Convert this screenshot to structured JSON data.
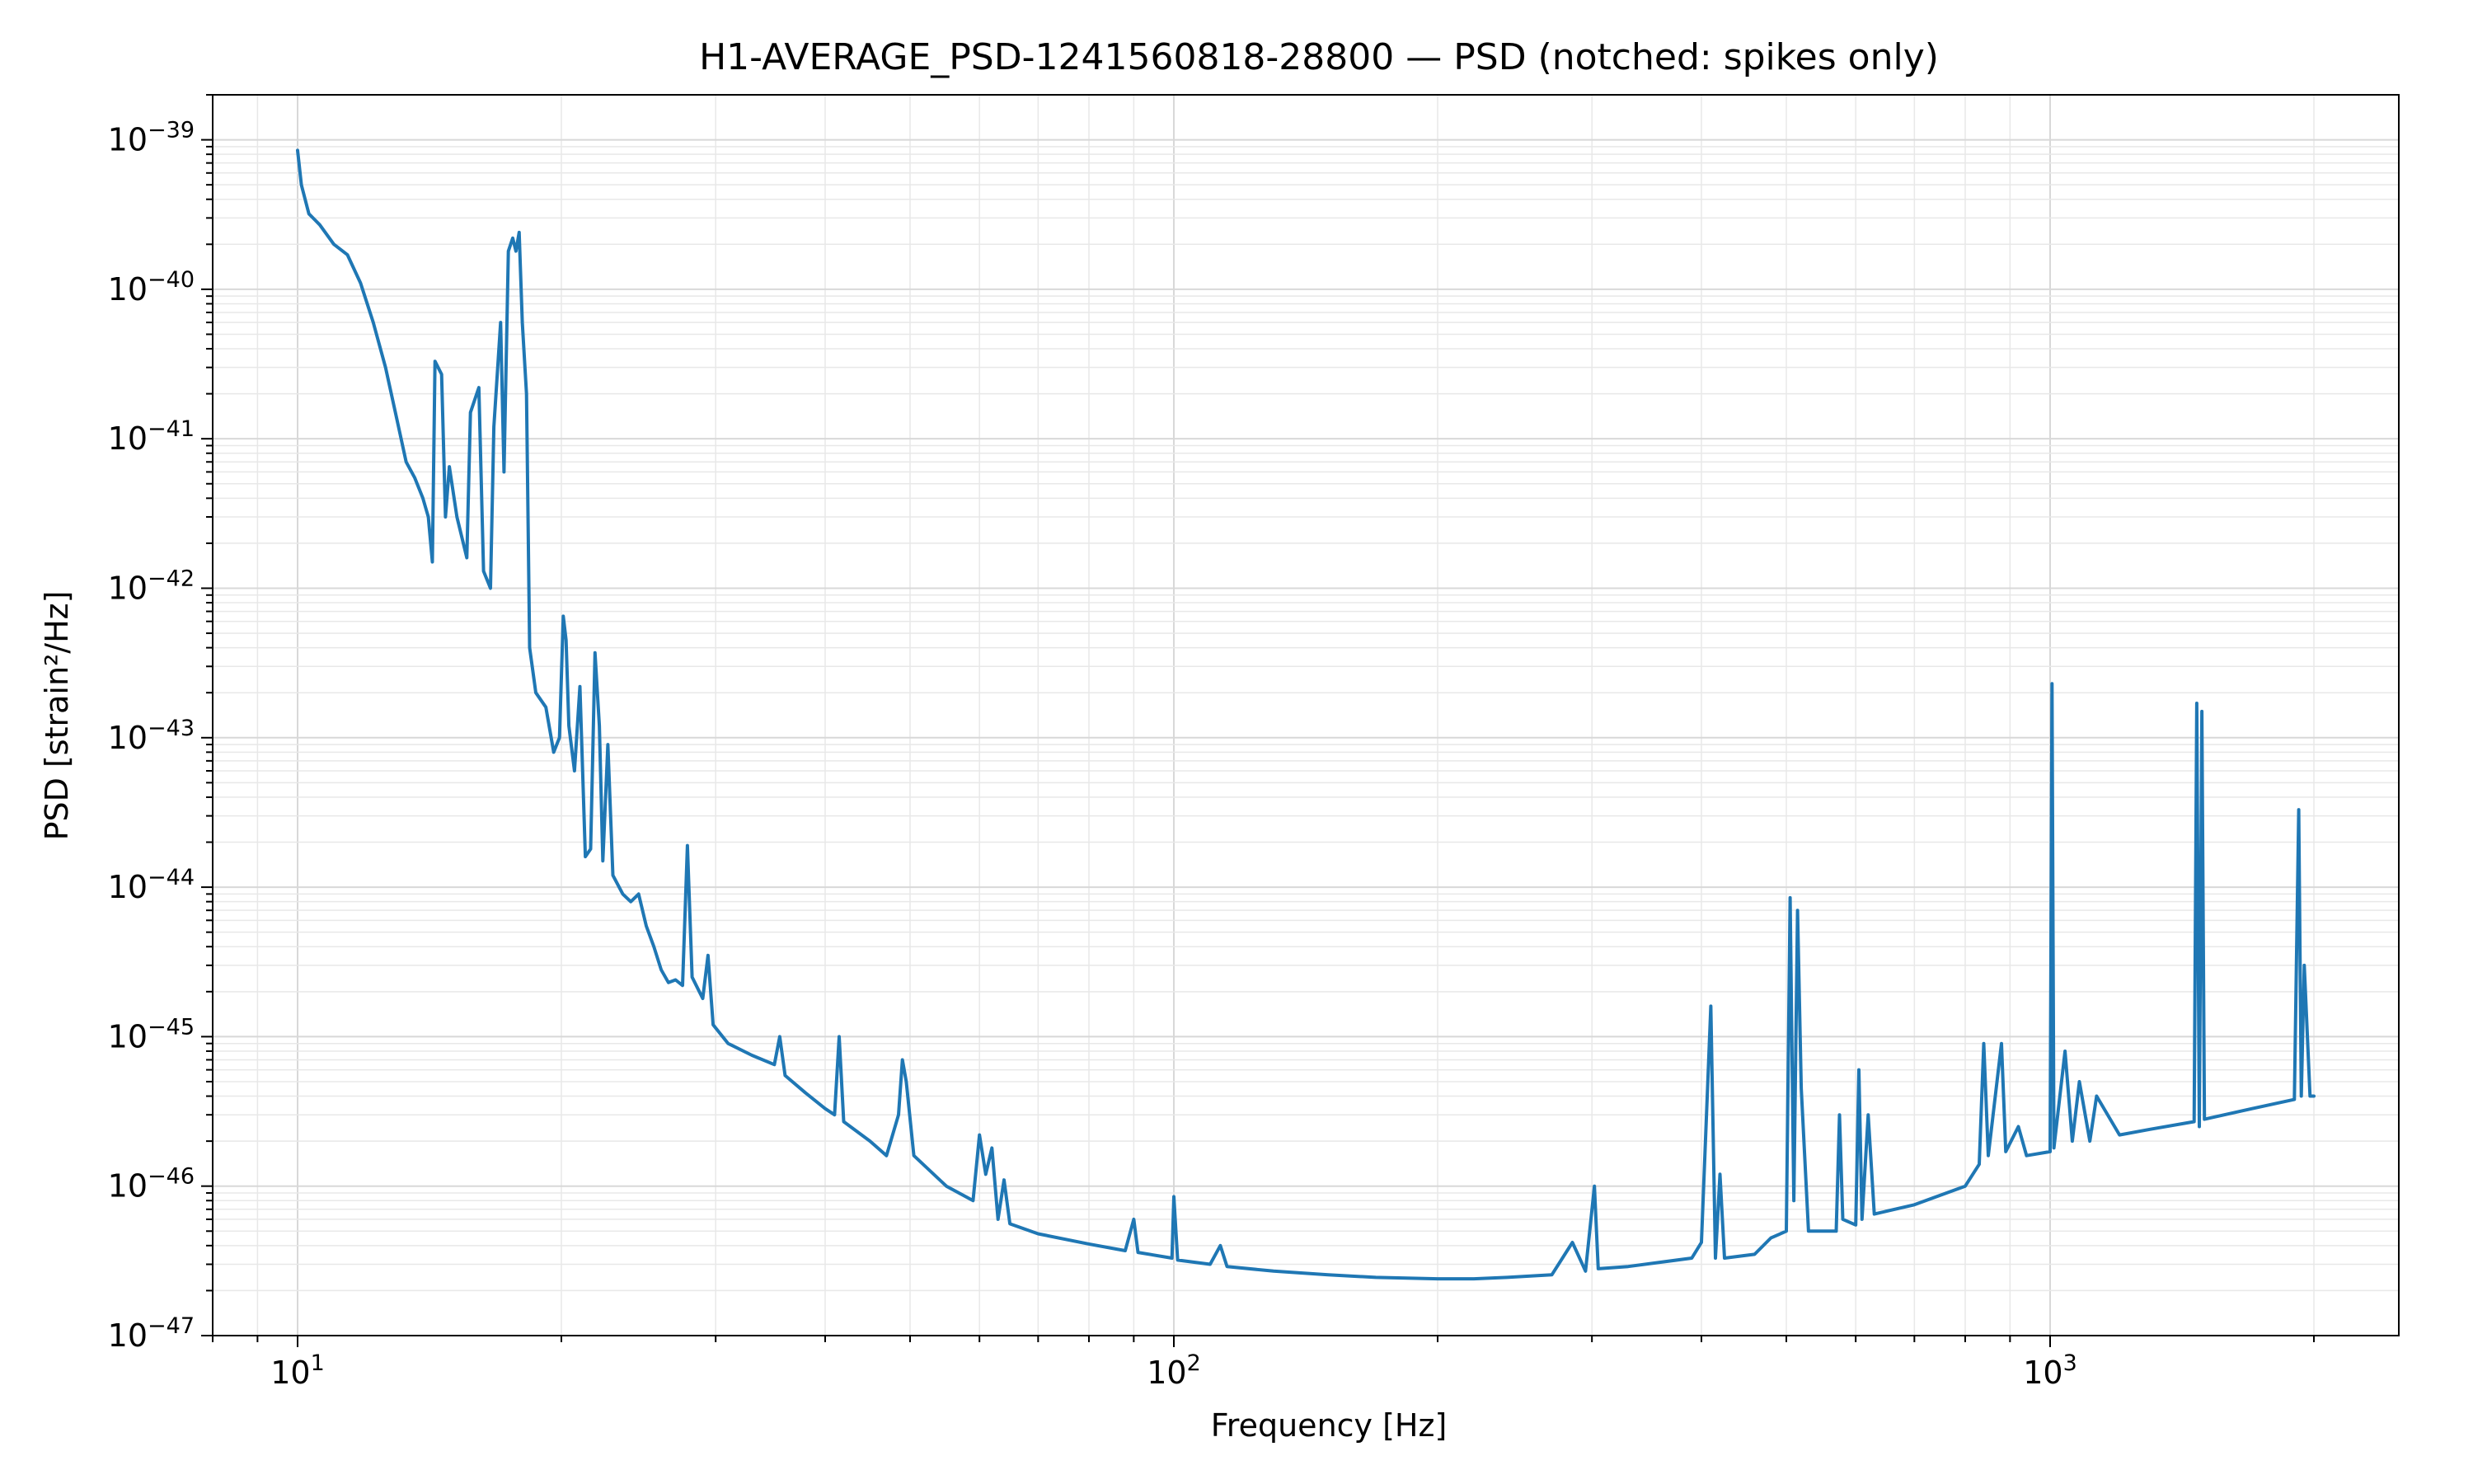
{
  "chart_data": {
    "type": "line",
    "title": "H1-AVERAGE_PSD-1241560818-28800 — PSD (notched: spikes only)",
    "xlabel": "Frequency [Hz]",
    "ylabel": "PSD [strain²/Hz]",
    "x_scale": "log",
    "y_scale": "log",
    "xlim": [
      8,
      2500
    ],
    "ylim": [
      1e-47,
      2e-39
    ],
    "grid": true,
    "legend": "none",
    "x_ticks": [
      {
        "value": 10,
        "base": "10",
        "exp": "1"
      },
      {
        "value": 100,
        "base": "10",
        "exp": "2"
      },
      {
        "value": 1000,
        "base": "10",
        "exp": "3"
      }
    ],
    "y_ticks": [
      {
        "value": 1e-39,
        "base": "10",
        "exp": "−39"
      },
      {
        "value": 1e-40,
        "base": "10",
        "exp": "−40"
      },
      {
        "value": 1e-41,
        "base": "10",
        "exp": "−41"
      },
      {
        "value": 1e-42,
        "base": "10",
        "exp": "−42"
      },
      {
        "value": 1e-43,
        "base": "10",
        "exp": "−43"
      },
      {
        "value": 1e-44,
        "base": "10",
        "exp": "−44"
      },
      {
        "value": 1e-45,
        "base": "10",
        "exp": "−45"
      },
      {
        "value": 1e-46,
        "base": "10",
        "exp": "−46"
      },
      {
        "value": 1e-47,
        "base": "10",
        "exp": "−47"
      }
    ],
    "series": [
      {
        "color": "#1f77b4",
        "points": [
          [
            10,
            8.5e-40
          ],
          [
            10.1,
            5e-40
          ],
          [
            10.3,
            3.2e-40
          ],
          [
            10.6,
            2.7e-40
          ],
          [
            11,
            2e-40
          ],
          [
            11.4,
            1.7e-40
          ],
          [
            11.8,
            1.1e-40
          ],
          [
            12.2,
            6e-41
          ],
          [
            12.6,
            3e-41
          ],
          [
            13,
            1.3e-41
          ],
          [
            13.3,
            7e-42
          ],
          [
            13.6,
            5.5e-42
          ],
          [
            13.9,
            4e-42
          ],
          [
            14.1,
            3e-42
          ],
          [
            14.25,
            1.5e-42
          ],
          [
            14.35,
            3.3e-41
          ],
          [
            14.6,
            2.7e-41
          ],
          [
            14.75,
            3e-42
          ],
          [
            14.9,
            6.5e-42
          ],
          [
            15.2,
            3e-42
          ],
          [
            15.6,
            1.6e-42
          ],
          [
            15.75,
            1.5e-41
          ],
          [
            16.1,
            2.2e-41
          ],
          [
            16.3,
            1.3e-42
          ],
          [
            16.6,
            1e-42
          ],
          [
            16.75,
            1.2e-41
          ],
          [
            17.05,
            6e-41
          ],
          [
            17.2,
            6e-42
          ],
          [
            17.4,
            1.8e-40
          ],
          [
            17.6,
            2.2e-40
          ],
          [
            17.75,
            1.8e-40
          ],
          [
            17.9,
            2.4e-40
          ],
          [
            18.05,
            6e-41
          ],
          [
            18.25,
            2e-41
          ],
          [
            18.4,
            4e-43
          ],
          [
            18.7,
            2e-43
          ],
          [
            19.2,
            1.6e-43
          ],
          [
            19.6,
            8e-44
          ],
          [
            19.9,
            1e-43
          ],
          [
            20.1,
            6.5e-43
          ],
          [
            20.25,
            4.5e-43
          ],
          [
            20.4,
            1.2e-43
          ],
          [
            20.7,
            6e-44
          ],
          [
            21,
            2.2e-43
          ],
          [
            21.3,
            1.6e-44
          ],
          [
            21.6,
            1.8e-44
          ],
          [
            21.85,
            3.7e-43
          ],
          [
            22.1,
            1.2e-43
          ],
          [
            22.3,
            1.5e-44
          ],
          [
            22.6,
            9e-44
          ],
          [
            22.9,
            1.2e-44
          ],
          [
            23.5,
            9e-45
          ],
          [
            24,
            8e-45
          ],
          [
            24.5,
            9e-45
          ],
          [
            25,
            5.5e-45
          ],
          [
            25.5,
            4e-45
          ],
          [
            26,
            2.8e-45
          ],
          [
            26.5,
            2.3e-45
          ],
          [
            27,
            2.4e-45
          ],
          [
            27.5,
            2.2e-45
          ],
          [
            27.85,
            1.9e-44
          ],
          [
            28.2,
            2.5e-45
          ],
          [
            29,
            1.8e-45
          ],
          [
            29.4,
            3.5e-45
          ],
          [
            29.8,
            1.2e-45
          ],
          [
            31,
            9e-46
          ],
          [
            33,
            7.5e-46
          ],
          [
            35,
            6.5e-46
          ],
          [
            35.5,
            1e-45
          ],
          [
            36,
            5.5e-46
          ],
          [
            38,
            4.2e-46
          ],
          [
            40,
            3.3e-46
          ],
          [
            41,
            3e-46
          ],
          [
            41.5,
            1e-45
          ],
          [
            42,
            2.7e-46
          ],
          [
            45,
            2e-46
          ],
          [
            47,
            1.6e-46
          ],
          [
            48.5,
            3e-46
          ],
          [
            49,
            7e-46
          ],
          [
            49.5,
            5e-46
          ],
          [
            50.5,
            1.6e-46
          ],
          [
            55,
            1e-46
          ],
          [
            59,
            8e-47
          ],
          [
            60,
            2.2e-46
          ],
          [
            61,
            1.2e-46
          ],
          [
            62,
            1.8e-46
          ],
          [
            63,
            6e-47
          ],
          [
            64,
            1.1e-46
          ],
          [
            65,
            5.6e-47
          ],
          [
            70,
            4.8e-47
          ],
          [
            80,
            4.1e-47
          ],
          [
            88,
            3.7e-47
          ],
          [
            90,
            6e-47
          ],
          [
            91,
            3.6e-47
          ],
          [
            99.5,
            3.3e-47
          ],
          [
            100,
            8.5e-47
          ],
          [
            101,
            3.2e-47
          ],
          [
            110,
            3e-47
          ],
          [
            113,
            4e-47
          ],
          [
            115,
            2.9e-47
          ],
          [
            130,
            2.7e-47
          ],
          [
            150,
            2.55e-47
          ],
          [
            170,
            2.45e-47
          ],
          [
            200,
            2.4e-47
          ],
          [
            220,
            2.4e-47
          ],
          [
            240,
            2.45e-47
          ],
          [
            270,
            2.55e-47
          ],
          [
            285,
            4.2e-47
          ],
          [
            295,
            2.7e-47
          ],
          [
            302,
            1e-46
          ],
          [
            305,
            2.8e-47
          ],
          [
            330,
            2.9e-47
          ],
          [
            360,
            3.1e-47
          ],
          [
            390,
            3.3e-47
          ],
          [
            400,
            4.2e-47
          ],
          [
            410,
            1.6e-45
          ],
          [
            415,
            3.3e-47
          ],
          [
            420,
            1.2e-46
          ],
          [
            425,
            3.3e-47
          ],
          [
            460,
            3.5e-47
          ],
          [
            480,
            4.5e-47
          ],
          [
            500,
            5e-47
          ],
          [
            505,
            8.5e-45
          ],
          [
            510,
            8e-47
          ],
          [
            515,
            7e-45
          ],
          [
            520,
            4.5e-46
          ],
          [
            530,
            5e-47
          ],
          [
            570,
            5e-47
          ],
          [
            575,
            3e-46
          ],
          [
            580,
            6e-47
          ],
          [
            600,
            5.5e-47
          ],
          [
            605,
            6e-46
          ],
          [
            610,
            6e-47
          ],
          [
            620,
            3e-46
          ],
          [
            630,
            6.5e-47
          ],
          [
            700,
            7.5e-47
          ],
          [
            800,
            1e-46
          ],
          [
            830,
            1.4e-46
          ],
          [
            840,
            9e-46
          ],
          [
            850,
            1.6e-46
          ],
          [
            880,
            9e-46
          ],
          [
            890,
            1.7e-46
          ],
          [
            920,
            2.5e-46
          ],
          [
            940,
            1.6e-46
          ],
          [
            1000,
            1.7e-46
          ],
          [
            1005,
            2.3e-43
          ],
          [
            1010,
            1.8e-46
          ],
          [
            1040,
            8e-46
          ],
          [
            1060,
            2e-46
          ],
          [
            1080,
            5e-46
          ],
          [
            1110,
            2e-46
          ],
          [
            1130,
            4e-46
          ],
          [
            1200,
            2.2e-46
          ],
          [
            1300,
            2.4e-46
          ],
          [
            1460,
            2.7e-46
          ],
          [
            1470,
            1.7e-43
          ],
          [
            1480,
            2.5e-46
          ],
          [
            1490,
            1.5e-43
          ],
          [
            1500,
            2.8e-46
          ],
          [
            1700,
            3.3e-46
          ],
          [
            1900,
            3.8e-46
          ],
          [
            1922,
            3.3e-44
          ],
          [
            1935,
            4e-46
          ],
          [
            1950,
            3e-45
          ],
          [
            1980,
            4e-46
          ],
          [
            2000,
            4e-46
          ]
        ]
      }
    ]
  }
}
